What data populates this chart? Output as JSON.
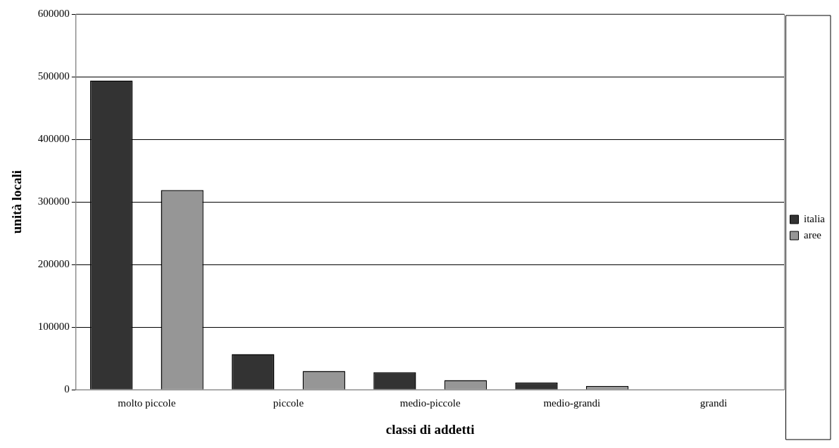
{
  "chart_data": {
    "type": "bar",
    "xlabel": "classi di addetti",
    "ylabel": "unità locali",
    "categories": [
      "molto piccole",
      "piccole",
      "medio-piccole",
      "medio-grandi",
      "grandi"
    ],
    "series": [
      {
        "name": "italia",
        "color": "#333333",
        "values": [
          494000,
          57000,
          28000,
          11500,
          0
        ]
      },
      {
        "name": "aree",
        "color": "#969696",
        "values": [
          319000,
          30000,
          15500,
          6000,
          0
        ]
      }
    ],
    "ylim": [
      0,
      600000
    ],
    "yticks": [
      0,
      100000,
      200000,
      300000,
      400000,
      500000,
      600000
    ],
    "grid": "y",
    "legend": "right"
  }
}
